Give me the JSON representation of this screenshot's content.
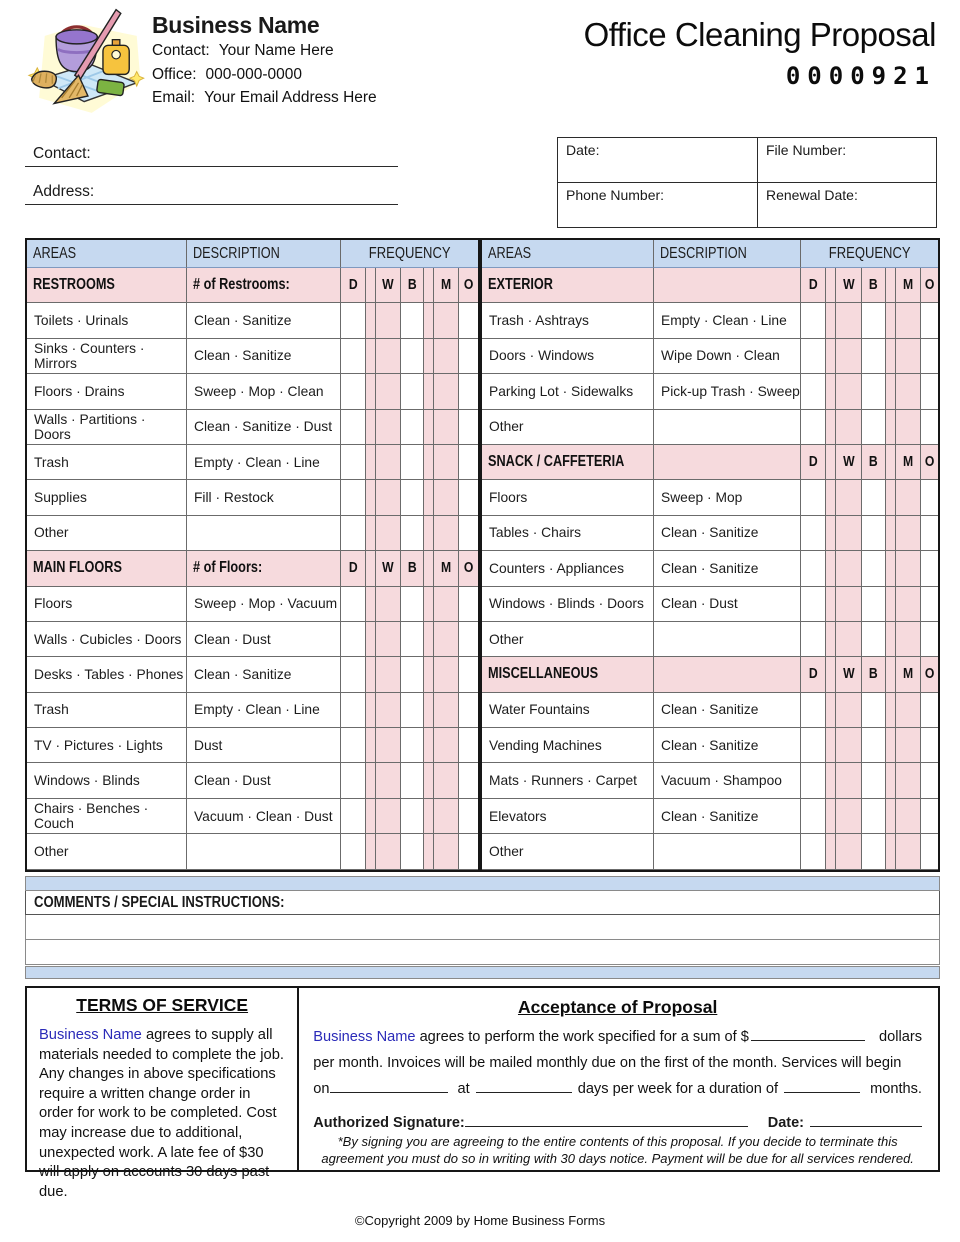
{
  "page": {
    "title": "Office Cleaning Proposal",
    "form_number": "0000921",
    "footer": "©Copyright 2009 by Home Business Forms"
  },
  "business": {
    "name": "Business Name",
    "lines": [
      {
        "label": "Contact:",
        "value": "Your Name Here"
      },
      {
        "label": "Office:",
        "value": "000-000-0000"
      },
      {
        "label": "Email:",
        "value": "Your Email Address Here"
      }
    ]
  },
  "client_fields": [
    {
      "label": "Contact:"
    },
    {
      "label": "Address:"
    },
    {
      "label": ""
    }
  ],
  "info_box": {
    "cells": [
      "Date:",
      "File Number:",
      "Phone Number:",
      "Renewal Date:"
    ]
  },
  "table": {
    "headers": [
      "AREAS",
      "DESCRIPTION",
      "FREQUENCY"
    ],
    "freq_letters": [
      "D",
      "W",
      "B",
      "M",
      "O"
    ],
    "left_sections": [
      {
        "title": "RESTROOMS",
        "desc": "# of Restrooms:",
        "rows": [
          [
            "Toilets · Urinals",
            "Clean · Sanitize"
          ],
          [
            "Sinks · Counters · Mirrors",
            "Clean · Sanitize"
          ],
          [
            "Floors · Drains",
            "Sweep · Mop · Clean"
          ],
          [
            "Walls · Partitions · Doors",
            "Clean · Sanitize · Dust"
          ],
          [
            "Trash",
            "Empty · Clean · Line"
          ],
          [
            "Supplies",
            "Fill · Restock"
          ],
          [
            "Other",
            ""
          ]
        ]
      },
      {
        "title": "MAIN FLOORS",
        "desc": "# of Floors:",
        "rows": [
          [
            "Floors",
            "Sweep · Mop · Vacuum"
          ],
          [
            "Walls · Cubicles · Doors",
            "Clean · Dust"
          ],
          [
            "Desks · Tables · Phones",
            "Clean · Sanitize"
          ],
          [
            "Trash",
            "Empty · Clean · Line"
          ],
          [
            "TV · Pictures · Lights",
            "Dust"
          ],
          [
            "Windows · Blinds",
            "Clean · Dust"
          ],
          [
            "Chairs · Benches · Couch",
            "Vacuum · Clean · Dust"
          ],
          [
            "Other",
            ""
          ]
        ]
      }
    ],
    "right_sections": [
      {
        "title": "EXTERIOR",
        "desc": "",
        "rows": [
          [
            "Trash · Ashtrays",
            "Empty · Clean · Line"
          ],
          [
            "Doors · Windows",
            "Wipe Down · Clean"
          ],
          [
            "Parking Lot · Sidewalks",
            "Pick-up Trash · Sweep"
          ],
          [
            "Other",
            ""
          ]
        ]
      },
      {
        "title": "SNACK / CAFFETERIA",
        "desc": "",
        "rows": [
          [
            "Floors",
            "Sweep · Mop"
          ],
          [
            "Tables · Chairs",
            "Clean · Sanitize"
          ],
          [
            "Counters · Appliances",
            "Clean · Sanitize"
          ],
          [
            "Windows · Blinds · Doors",
            "Clean · Dust"
          ],
          [
            "Other",
            ""
          ]
        ]
      },
      {
        "title": "MISCELLANEOUS",
        "desc": "",
        "rows": [
          [
            "Water Fountains",
            "Clean · Sanitize"
          ],
          [
            "Vending Machines",
            "Clean · Sanitize"
          ],
          [
            "Mats · Runners · Carpet",
            "Vacuum · Shampoo"
          ],
          [
            "Elevators",
            "Clean · Sanitize"
          ],
          [
            "Other",
            ""
          ]
        ]
      }
    ]
  },
  "comments": {
    "label": "COMMENTS / SPECIAL INSTRUCTIONS:",
    "blank_lines": 2
  },
  "terms": {
    "title": "TERMS OF SERVICE",
    "business_name": "Business Name",
    "body": "agrees to supply all materials needed to complete the job.  Any changes in above specifications require a written change order in order for work to be completed.  Cost may increase due to additional, unexpected work.  A late fee of $30 will apply on accounts 30 days past due."
  },
  "acceptance": {
    "title": "Acceptance of Proposal",
    "business_name": "Business Name",
    "line1_pre": "agrees to perform the work specified for a sum of $",
    "line1_post": "dollars",
    "line2": "per month.  Invoices will be mailed monthly due on the first of the month.  Services will begin",
    "line3_on": "on",
    "line3_at": "at",
    "line3_mid": "days per week for a duration of",
    "line3_end": "months.",
    "signature_label": "Authorized Signature:",
    "date_label": "Date:",
    "fine_print": "*By signing you are agreeing to the entire contents of this proposal.  If you decide to terminate this agreement you must do so in writing with 30 days notice.  Payment will be due for all services rendered."
  },
  "colors": {
    "header_blue": "#c6d9f0",
    "section_pink": "#f6dadd",
    "business_name_blue": "#2a2ab8",
    "grid_border": "#6b6b6b"
  }
}
